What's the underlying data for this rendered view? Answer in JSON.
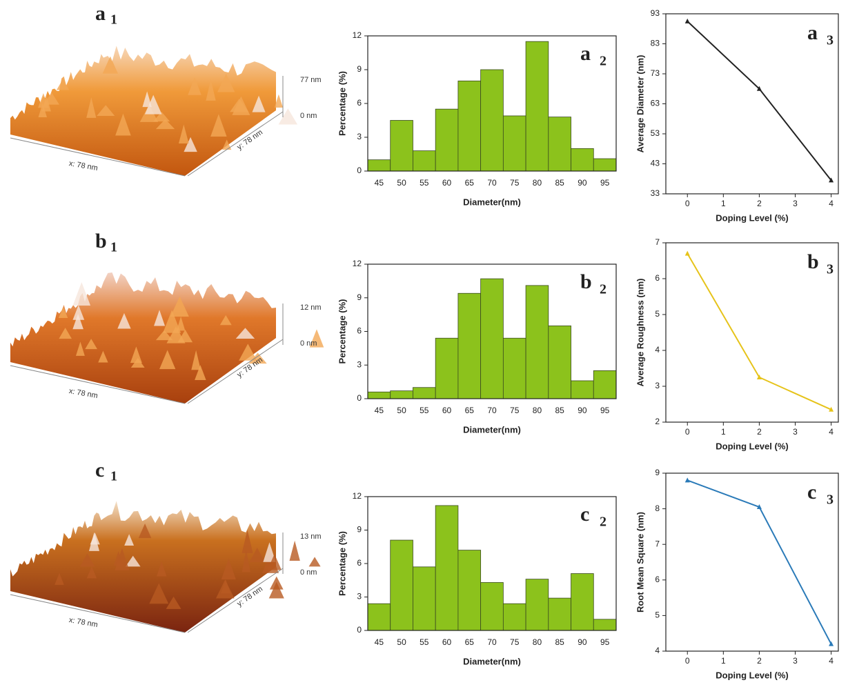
{
  "chart_data": [
    {
      "type": "bar",
      "annotation": "a",
      "annotation_sub": "2",
      "x_label": "Diameter(nm)",
      "y_label": "Percentage (%)",
      "categories": [
        "45",
        "50",
        "55",
        "60",
        "65",
        "70",
        "75",
        "80",
        "85",
        "90",
        "95"
      ],
      "values": [
        1.0,
        4.5,
        1.8,
        5.5,
        8.0,
        9.0,
        4.9,
        11.5,
        4.8,
        2.0,
        1.1
      ],
      "color": "#8cc21c",
      "ylim": [
        0,
        12
      ],
      "yticks": [
        0,
        3,
        6,
        9,
        12
      ]
    },
    {
      "type": "line",
      "annotation": "a",
      "annotation_sub": "3",
      "x_label": "Doping Level (%)",
      "y_label": "Average Diameter (nm)",
      "x": [
        0,
        2,
        4
      ],
      "values": [
        90.5,
        68,
        37.5
      ],
      "color": "#222222",
      "xlim": [
        -0.6,
        4.2
      ],
      "xticks": [
        0,
        1,
        2,
        3,
        4
      ],
      "ylim": [
        33,
        93
      ],
      "yticks": [
        33,
        43,
        53,
        63,
        73,
        83,
        93
      ]
    },
    {
      "type": "bar",
      "annotation": "b",
      "annotation_sub": "2",
      "x_label": "Diameter(nm)",
      "y_label": "Percentage (%)",
      "categories": [
        "45",
        "50",
        "55",
        "60",
        "65",
        "70",
        "75",
        "80",
        "85",
        "90",
        "95"
      ],
      "values": [
        0.6,
        0.7,
        1.0,
        5.4,
        9.4,
        10.7,
        5.4,
        10.1,
        6.5,
        1.6,
        2.5
      ],
      "color": "#8cc21c",
      "ylim": [
        0,
        12
      ],
      "yticks": [
        0,
        3,
        6,
        9,
        12
      ]
    },
    {
      "type": "line",
      "annotation": "b",
      "annotation_sub": "3",
      "x_label": "Doping Level (%)",
      "y_label": "Average Roughness (nm)",
      "x": [
        0,
        2,
        4
      ],
      "values": [
        6.7,
        3.25,
        2.35
      ],
      "color": "#e6c31a",
      "xlim": [
        -0.6,
        4.2
      ],
      "xticks": [
        0,
        1,
        2,
        3,
        4
      ],
      "ylim": [
        2,
        7
      ],
      "yticks": [
        2,
        3,
        4,
        5,
        6,
        7
      ]
    },
    {
      "type": "bar",
      "annotation": "c",
      "annotation_sub": "2",
      "x_label": "Diameter(nm)",
      "y_label": "Percentage (%)",
      "categories": [
        "45",
        "50",
        "55",
        "60",
        "65",
        "70",
        "75",
        "80",
        "85",
        "90",
        "95"
      ],
      "values": [
        2.4,
        8.1,
        5.7,
        11.2,
        7.2,
        4.3,
        2.4,
        4.6,
        2.9,
        5.1,
        1.0
      ],
      "color": "#8cc21c",
      "ylim": [
        0,
        12
      ],
      "yticks": [
        0,
        3,
        6,
        9,
        12
      ]
    },
    {
      "type": "line",
      "annotation": "c",
      "annotation_sub": "3",
      "x_label": "Doping Level (%)",
      "y_label": "Root Mean Square (nm)",
      "x": [
        0,
        2,
        4
      ],
      "values": [
        8.8,
        8.05,
        4.2
      ],
      "color": "#2a7ab8",
      "xlim": [
        -0.6,
        4.2
      ],
      "xticks": [
        0,
        1,
        2,
        3,
        4
      ],
      "ylim": [
        4,
        9
      ],
      "yticks": [
        4,
        5,
        6,
        7,
        8,
        9
      ]
    }
  ],
  "afm_images": [
    {
      "label": "a",
      "label_sub": "1",
      "x_label": "x: 78 nm",
      "y_label": "y: 78 nm",
      "z_max": "77 nm",
      "z_min": "0 nm"
    },
    {
      "label": "b",
      "label_sub": "1",
      "x_label": "x: 78 nm",
      "y_label": "y: 78 nm",
      "z_max": "12 nm",
      "z_min": "0 nm"
    },
    {
      "label": "c",
      "label_sub": "1",
      "x_label": "x: 78 nm",
      "y_label": "y: 78 nm",
      "z_max": "13 nm",
      "z_min": "0 nm"
    }
  ]
}
